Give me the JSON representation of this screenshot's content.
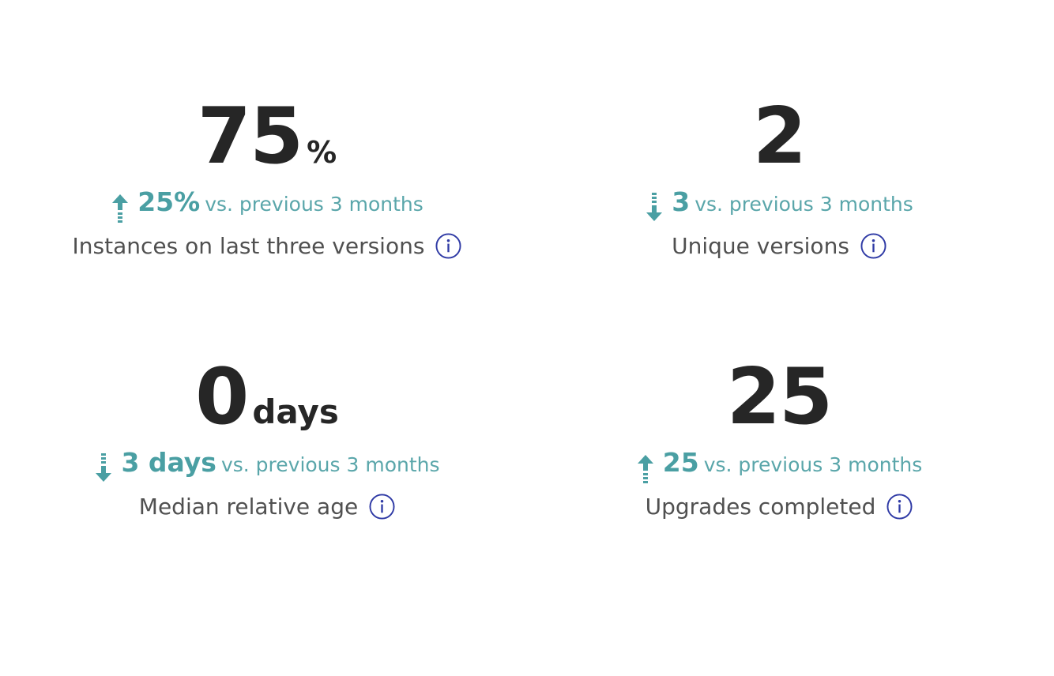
{
  "colors": {
    "trend": "#4a9fa3",
    "value": "#262626",
    "info": "#2f3aa5"
  },
  "metrics": [
    {
      "value": "75",
      "unit": "%",
      "trend_direction": "up",
      "trend_icon": "arrow-up-icon",
      "trend_value": "25%",
      "comparison": "vs. previous 3 months",
      "label": "Instances on last three versions"
    },
    {
      "value": "2",
      "unit": "",
      "trend_direction": "down",
      "trend_icon": "arrow-down-icon",
      "trend_value": "3",
      "comparison": "vs. previous 3 months",
      "label": "Unique versions"
    },
    {
      "value": "0",
      "unit": "days",
      "trend_direction": "down",
      "trend_icon": "arrow-down-icon",
      "trend_value": "3 days",
      "comparison": "vs. previous 3 months",
      "label": "Median relative age"
    },
    {
      "value": "25",
      "unit": "",
      "trend_direction": "up",
      "trend_icon": "arrow-up-icon",
      "trend_value": "25",
      "comparison": "vs. previous 3 months",
      "label": "Upgrades completed"
    }
  ]
}
